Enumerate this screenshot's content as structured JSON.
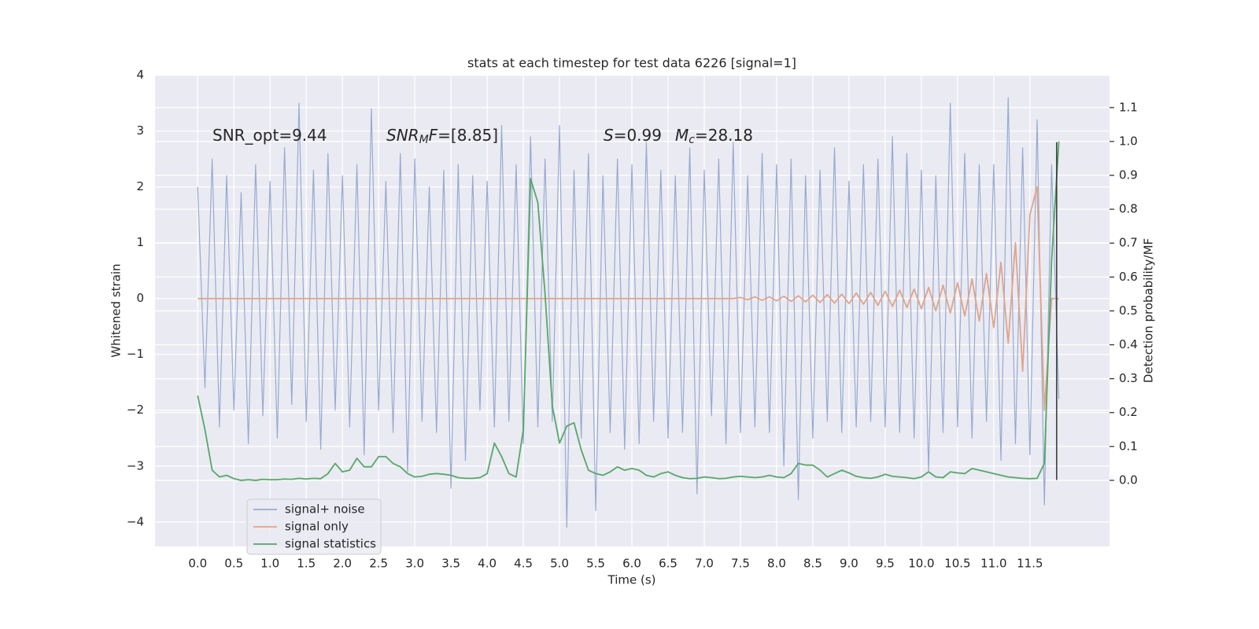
{
  "chart_data": {
    "type": "line",
    "title": "stats at each timestep for test data 6226 [signal=1]",
    "xlabel": "Time (s)",
    "ylabel": "Whitened strain",
    "y2label": "Detection probability/MF",
    "background": "#eaeaf2",
    "grid": true,
    "grid_color": "#ffffff",
    "legend": "lower left",
    "xlim": [
      -0.59,
      12.6
    ],
    "ylim": [
      -4.44,
      4.01
    ],
    "y2lim": [
      -0.195,
      1.197
    ],
    "xticks": [
      {
        "value": 0,
        "label": "0.0"
      },
      {
        "value": 0.5,
        "label": "0.5"
      },
      {
        "value": 1,
        "label": "1.0"
      },
      {
        "value": 1.5,
        "label": "1.5"
      },
      {
        "value": 2,
        "label": "2.0"
      },
      {
        "value": 2.5,
        "label": "2.5"
      },
      {
        "value": 3,
        "label": "3.0"
      },
      {
        "value": 3.5,
        "label": "3.5"
      },
      {
        "value": 4,
        "label": "4.0"
      },
      {
        "value": 4.5,
        "label": "4.5"
      },
      {
        "value": 5,
        "label": "5.0"
      },
      {
        "value": 5.5,
        "label": "5.5"
      },
      {
        "value": 6,
        "label": "6.0"
      },
      {
        "value": 6.5,
        "label": "6.5"
      },
      {
        "value": 7,
        "label": "7.0"
      },
      {
        "value": 7.5,
        "label": "7.5"
      },
      {
        "value": 8,
        "label": "8.0"
      },
      {
        "value": 8.5,
        "label": "8.5"
      },
      {
        "value": 9,
        "label": "9.0"
      },
      {
        "value": 9.5,
        "label": "9.5"
      },
      {
        "value": 10,
        "label": "10.0"
      },
      {
        "value": 10.5,
        "label": "10.5"
      },
      {
        "value": 11,
        "label": "11.0"
      },
      {
        "value": 11.5,
        "label": "11.5"
      }
    ],
    "yticks": [
      {
        "value": -4,
        "label": "−4"
      },
      {
        "value": -3,
        "label": "−3"
      },
      {
        "value": -2,
        "label": "−2"
      },
      {
        "value": -1,
        "label": "−1"
      },
      0,
      1,
      2,
      3,
      4
    ],
    "y2ticks": [
      {
        "value": 0,
        "label": "0.0"
      },
      {
        "value": 0.1,
        "label": "0.1"
      },
      {
        "value": 0.2,
        "label": "0.2"
      },
      {
        "value": 0.3,
        "label": "0.3"
      },
      {
        "value": 0.4,
        "label": "0.4"
      },
      {
        "value": 0.5,
        "label": "0.5"
      },
      {
        "value": 0.6,
        "label": "0.6"
      },
      {
        "value": 0.7,
        "label": "0.7"
      },
      {
        "value": 0.8,
        "label": "0.8"
      },
      {
        "value": 0.9,
        "label": "0.9"
      },
      {
        "value": 1,
        "label": "1.0"
      },
      {
        "value": 1.1,
        "label": "1.1"
      }
    ],
    "x": [
      0,
      0.1,
      0.2,
      0.3,
      0.4,
      0.5,
      0.6,
      0.7,
      0.8,
      0.9,
      1,
      1.1,
      1.2,
      1.3,
      1.4,
      1.5,
      1.6,
      1.7,
      1.8,
      1.9,
      2,
      2.1,
      2.2,
      2.3,
      2.4,
      2.5,
      2.6,
      2.7,
      2.8,
      2.9,
      3,
      3.1,
      3.2,
      3.3,
      3.4,
      3.5,
      3.6,
      3.7,
      3.8,
      3.9,
      4,
      4.1,
      4.2,
      4.3,
      4.4,
      4.5,
      4.6,
      4.7,
      4.8,
      4.9,
      5,
      5.1,
      5.2,
      5.3,
      5.4,
      5.5,
      5.6,
      5.7,
      5.8,
      5.9,
      6,
      6.1,
      6.2,
      6.3,
      6.4,
      6.5,
      6.6,
      6.7,
      6.8,
      6.9,
      7,
      7.1,
      7.2,
      7.3,
      7.4,
      7.5,
      7.6,
      7.7,
      7.8,
      7.9,
      8,
      8.1,
      8.2,
      8.3,
      8.4,
      8.5,
      8.6,
      8.7,
      8.8,
      8.9,
      9,
      9.1,
      9.2,
      9.3,
      9.4,
      9.5,
      9.6,
      9.7,
      9.8,
      9.9,
      10,
      10.1,
      10.2,
      10.3,
      10.4,
      10.5,
      10.6,
      10.7,
      10.8,
      10.9,
      11,
      11.1,
      11.2,
      11.3,
      11.4,
      11.5,
      11.6,
      11.7,
      11.8,
      11.9
    ],
    "series": [
      {
        "name": "signal+ noise",
        "color": "#97abd1",
        "axis": "y",
        "values": [
          2.0,
          -1.6,
          2.5,
          -2.3,
          2.2,
          -2.0,
          1.9,
          -2.6,
          2.4,
          -2.1,
          2.1,
          -2.5,
          2.7,
          -1.9,
          3.5,
          -2.2,
          2.3,
          -2.7,
          2.6,
          -2.0,
          2.2,
          -2.3,
          2.4,
          -2.8,
          3.4,
          -2.0,
          2.1,
          -2.4,
          2.6,
          -3.1,
          2.5,
          -2.2,
          2.0,
          -2.4,
          2.3,
          -3.4,
          2.4,
          -2.9,
          2.2,
          -2.0,
          2.1,
          -2.3,
          3.1,
          -2.2,
          2.4,
          -2.6,
          2.9,
          -2.3,
          2.5,
          -2.2,
          3.1,
          -4.1,
          2.3,
          -2.5,
          2.6,
          -3.8,
          2.2,
          -2.4,
          2.5,
          -2.7,
          2.4,
          -2.6,
          2.8,
          -2.2,
          2.3,
          -2.5,
          2.2,
          -2.4,
          2.7,
          -3.5,
          2.3,
          -2.1,
          2.5,
          -2.6,
          2.8,
          -2.4,
          2.2,
          -2.3,
          2.6,
          -2.4,
          2.4,
          -3.0,
          2.5,
          -3.6,
          2.2,
          -2.5,
          2.3,
          -2.2,
          2.7,
          -2.4,
          2.1,
          -2.3,
          2.4,
          -2.2,
          2.5,
          -2.3,
          2.9,
          -2.4,
          2.6,
          -2.5,
          2.3,
          -3.1,
          2.2,
          -2.4,
          3.5,
          -2.3,
          2.6,
          -2.5,
          2.4,
          -2.2,
          2.4,
          -2.9,
          3.6,
          -2.6,
          2.7,
          -2.8,
          3.2,
          -3.7,
          2.4,
          -1.8
        ]
      },
      {
        "name": "signal only",
        "color": "#e0a48a",
        "axis": "y",
        "values": [
          0,
          0,
          0,
          0,
          0,
          0,
          0,
          0,
          0,
          0,
          0,
          0,
          0,
          0,
          0,
          0,
          0,
          0,
          0,
          0,
          0,
          0,
          0,
          0,
          0,
          0,
          0,
          0,
          0,
          0,
          0,
          0,
          0,
          0,
          0,
          0,
          0,
          0,
          0,
          0,
          0,
          0,
          0,
          0,
          0,
          0,
          0,
          0,
          0,
          0,
          0,
          0,
          0,
          0,
          0,
          0,
          0,
          0,
          0,
          0,
          0,
          0,
          0,
          0,
          0,
          0,
          0,
          0,
          0,
          0,
          0,
          0,
          0,
          0,
          0,
          0.02,
          -0.02,
          0.03,
          -0.03,
          0.03,
          -0.04,
          0.04,
          -0.05,
          0.05,
          -0.06,
          0.06,
          -0.07,
          0.07,
          -0.08,
          0.08,
          -0.09,
          0.1,
          -0.1,
          0.11,
          -0.12,
          0.13,
          -0.14,
          0.15,
          -0.16,
          0.17,
          -0.18,
          0.2,
          -0.22,
          0.24,
          -0.26,
          0.28,
          -0.31,
          0.35,
          -0.4,
          0.45,
          -0.52,
          0.65,
          -0.8,
          1.0,
          -1.3,
          1.5,
          2.0,
          -2.0,
          0,
          0
        ]
      },
      {
        "name": "signal statistics",
        "color": "#55a868",
        "axis": "y2",
        "values": [
          0.25,
          0.15,
          0.03,
          0.01,
          0.015,
          0.005,
          0.0,
          0.002,
          0.0,
          0.003,
          0.002,
          0.002,
          0.004,
          0.003,
          0.006,
          0.004,
          0.006,
          0.005,
          0.02,
          0.05,
          0.025,
          0.03,
          0.065,
          0.04,
          0.04,
          0.07,
          0.07,
          0.05,
          0.04,
          0.02,
          0.01,
          0.012,
          0.018,
          0.02,
          0.018,
          0.015,
          0.008,
          0.006,
          0.006,
          0.008,
          0.02,
          0.11,
          0.07,
          0.02,
          0.01,
          0.15,
          0.89,
          0.82,
          0.55,
          0.22,
          0.11,
          0.16,
          0.17,
          0.09,
          0.03,
          0.02,
          0.015,
          0.025,
          0.04,
          0.03,
          0.035,
          0.03,
          0.015,
          0.01,
          0.02,
          0.025,
          0.015,
          0.008,
          0.005,
          0.006,
          0.01,
          0.008,
          0.005,
          0.006,
          0.01,
          0.012,
          0.01,
          0.008,
          0.01,
          0.015,
          0.01,
          0.008,
          0.02,
          0.05,
          0.045,
          0.045,
          0.03,
          0.01,
          0.02,
          0.03,
          0.022,
          0.012,
          0.008,
          0.006,
          0.01,
          0.018,
          0.012,
          0.01,
          0.008,
          0.005,
          0.01,
          0.025,
          0.01,
          0.008,
          0.025,
          0.022,
          0.02,
          0.035,
          0.03,
          0.025,
          0.02,
          0.015,
          0.01,
          0.008,
          0.006,
          0.005,
          0.006,
          0.05,
          0.65,
          1.0
        ]
      }
    ],
    "vline": {
      "x": 11.87,
      "y": [
        -3.25,
        2.8
      ],
      "color": "#333333"
    },
    "annotations": [
      [
        {
          "t": "SNR_opt=9.44"
        }
      ],
      [
        {
          "t": "SNR",
          "i": true
        },
        {
          "t": "M",
          "i": true,
          "sub": true
        },
        {
          "t": "F",
          "i": true
        },
        {
          "t": "=[8.85]"
        }
      ],
      [
        {
          "t": "S",
          "i": true
        },
        {
          "t": "=0.99"
        }
      ],
      [
        {
          "t": "M",
          "i": true
        },
        {
          "t": "c",
          "i": true,
          "sub": true
        },
        {
          "t": "=28.18"
        }
      ]
    ]
  }
}
